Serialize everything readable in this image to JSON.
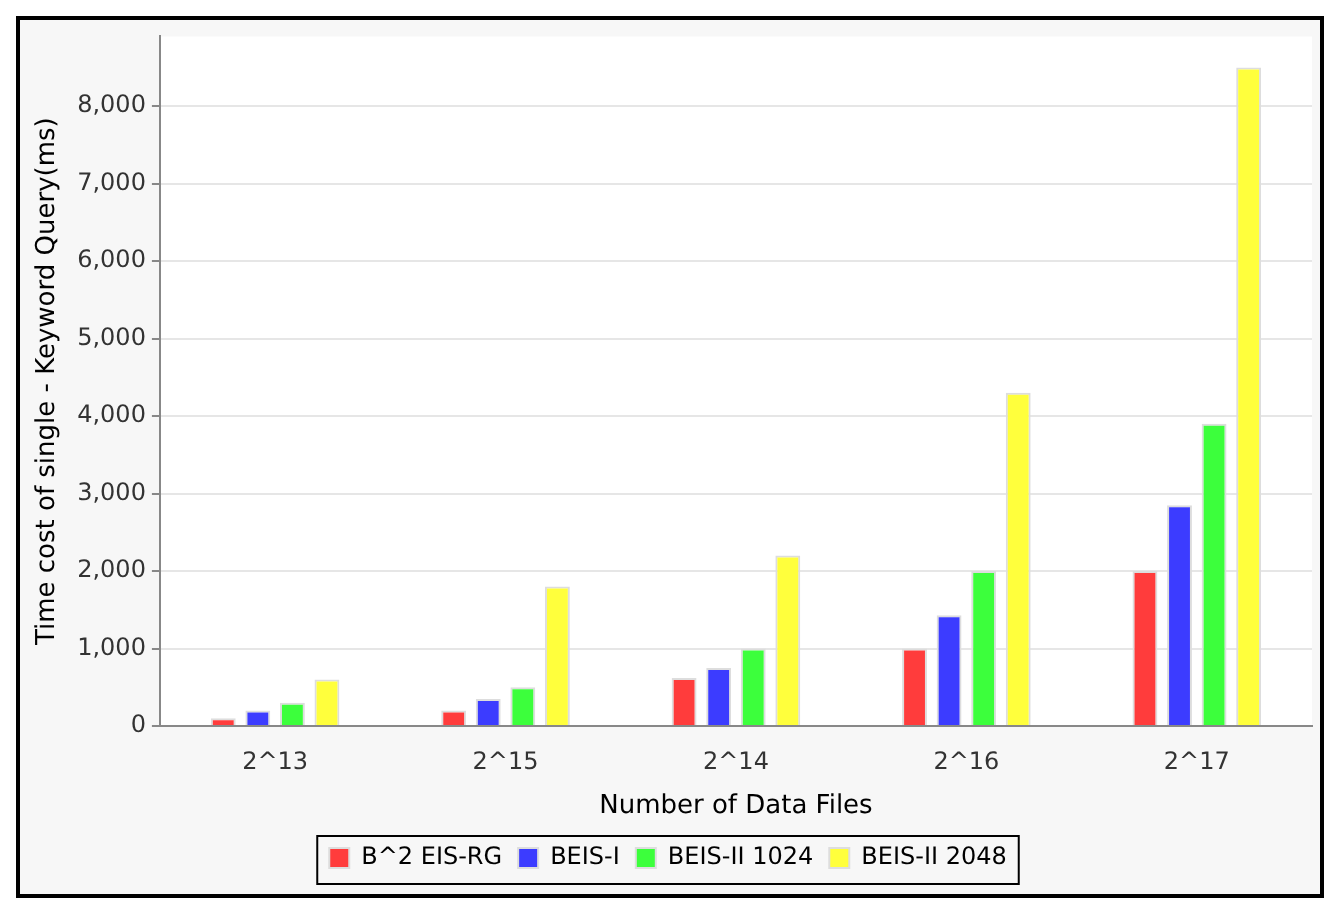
{
  "chart_data": {
    "type": "bar",
    "xlabel": "Number of Data Files",
    "ylabel": "Time cost of single - Keyword Query(ms)",
    "categories": [
      "2^13",
      "2^15",
      "2^14",
      "2^16",
      "2^17"
    ],
    "series": [
      {
        "name": "B^2 EIS-RG",
        "color": "#ff3c3c",
        "values": [
          100,
          200,
          620,
          1000,
          2000
        ]
      },
      {
        "name": "BEIS-I",
        "color": "#3c3cff",
        "values": [
          200,
          350,
          750,
          1430,
          2850
        ]
      },
      {
        "name": "BEIS-II 1024",
        "color": "#3cff3c",
        "values": [
          300,
          500,
          1000,
          2000,
          3900
        ]
      },
      {
        "name": "BEIS-II 2048",
        "color": "#ffff3c",
        "values": [
          600,
          1800,
          2200,
          4300,
          8500
        ]
      }
    ],
    "ylim": [
      0,
      8900
    ],
    "yticks": [
      0,
      {
        "value": 1000,
        "label": "1,000"
      },
      {
        "value": 2000,
        "label": "2,000"
      },
      {
        "value": 3000,
        "label": "3,000"
      },
      {
        "value": 4000,
        "label": "4,000"
      },
      {
        "value": 5000,
        "label": "5,000"
      },
      {
        "value": 6000,
        "label": "6,000"
      },
      {
        "value": 7000,
        "label": "7,000"
      },
      {
        "value": 8000,
        "label": "8,000"
      }
    ],
    "grid": "y",
    "legend": "bottom"
  }
}
